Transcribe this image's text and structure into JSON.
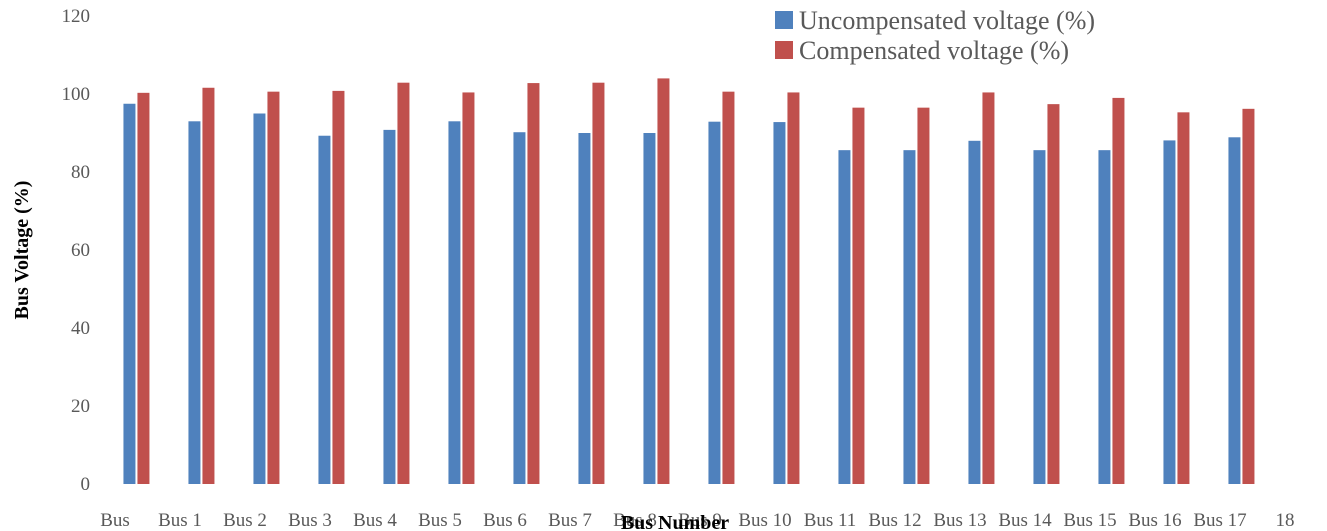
{
  "chart_data": {
    "type": "bar",
    "title": "",
    "xlabel": "Bus Number",
    "ylabel": "Bus Voltage (%)",
    "ylim": [
      0,
      120
    ],
    "yticks": [
      0,
      20,
      40,
      60,
      80,
      100,
      120
    ],
    "grid": false,
    "legend_position": "top-right",
    "categories": [
      "Bus",
      "Bus 1",
      "Bus 2",
      "Bus 3",
      "Bus 4",
      "Bus 5",
      "Bus 6",
      "Bus 7",
      "Bus 8",
      "Bus 9",
      "Bus 10",
      "Bus 11",
      "Bus 12",
      "Bus 13",
      "Bus 14",
      "Bus 15",
      "Bus 16",
      "Bus 17"
    ],
    "extra_x_tick": "18",
    "series": [
      {
        "name": "Uncompensated voltage (%)",
        "color": "#4F81BD",
        "values": [
          97.5,
          93,
          95,
          89.3,
          90.8,
          93,
          90.2,
          90,
          90,
          92.9,
          92.8,
          85.6,
          85.6,
          88,
          85.6,
          85.6,
          88.1,
          88.9
        ]
      },
      {
        "name": "Compensated voltage (%)",
        "color": "#C0504D",
        "values": [
          100.3,
          101.6,
          100.6,
          100.8,
          102.9,
          100.4,
          102.8,
          102.9,
          104,
          100.6,
          100.4,
          96.5,
          96.5,
          100.4,
          97.4,
          99,
          95.3,
          96.2
        ]
      }
    ]
  }
}
